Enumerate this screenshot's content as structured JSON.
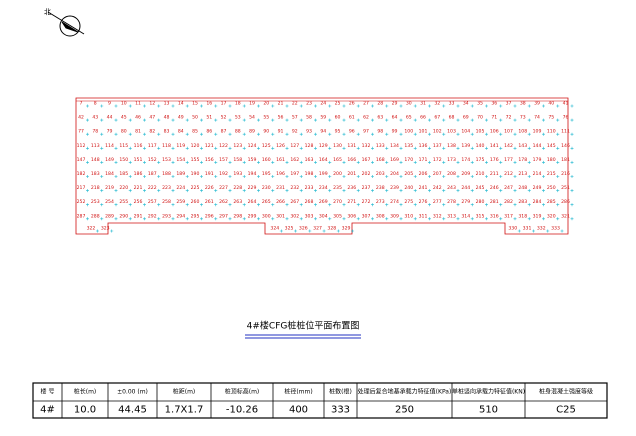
{
  "drawing_title": "4#楼CFG桩桩位平面布置图",
  "piles": {
    "rows": [
      [
        7,
        8,
        9,
        10,
        11,
        12,
        13,
        14,
        15,
        16,
        17,
        18,
        19,
        20,
        21,
        22,
        23,
        24,
        25,
        26,
        27,
        28,
        29,
        30,
        31,
        32,
        33,
        34,
        35,
        36,
        37,
        38,
        39,
        40,
        41
      ],
      [
        42,
        43,
        44,
        45,
        46,
        47,
        48,
        49,
        50,
        51,
        52,
        53,
        54,
        55,
        56,
        57,
        58,
        59,
        60,
        61,
        62,
        63,
        64,
        65,
        66,
        67,
        68,
        69,
        70,
        71,
        72,
        73,
        74,
        75,
        76
      ],
      [
        77,
        78,
        79,
        80,
        81,
        82,
        83,
        84,
        85,
        86,
        87,
        88,
        89,
        90,
        91,
        92,
        93,
        94,
        95,
        96,
        97,
        98,
        99,
        100,
        101,
        102,
        103,
        104,
        105,
        106,
        107,
        108,
        109,
        110,
        111
      ],
      [
        112,
        113,
        114,
        115,
        116,
        117,
        118,
        119,
        120,
        121,
        122,
        123,
        124,
        125,
        126,
        127,
        128,
        129,
        130,
        131,
        132,
        133,
        134,
        135,
        136,
        137,
        138,
        139,
        140,
        141,
        142,
        143,
        144,
        145,
        146
      ],
      [
        147,
        148,
        149,
        150,
        151,
        152,
        153,
        154,
        155,
        156,
        157,
        158,
        159,
        160,
        161,
        162,
        163,
        164,
        165,
        166,
        167,
        168,
        169,
        170,
        171,
        172,
        173,
        174,
        175,
        176,
        177,
        178,
        179,
        180,
        181
      ],
      [
        182,
        183,
        184,
        185,
        186,
        187,
        188,
        189,
        190,
        191,
        192,
        193,
        194,
        195,
        196,
        197,
        198,
        199,
        200,
        201,
        202,
        203,
        204,
        205,
        206,
        207,
        208,
        209,
        210,
        211,
        212,
        213,
        214,
        215,
        216
      ],
      [
        217,
        218,
        219,
        220,
        221,
        222,
        223,
        224,
        225,
        226,
        227,
        228,
        229,
        230,
        231,
        232,
        233,
        234,
        235,
        236,
        237,
        238,
        239,
        240,
        241,
        242,
        243,
        244,
        245,
        246,
        247,
        248,
        249,
        250,
        251
      ],
      [
        252,
        253,
        254,
        255,
        256,
        257,
        258,
        259,
        260,
        261,
        262,
        263,
        264,
        265,
        266,
        267,
        268,
        269,
        270,
        271,
        272,
        273,
        274,
        275,
        276,
        277,
        278,
        279,
        280,
        281,
        282,
        283,
        284,
        285,
        286
      ],
      [
        287,
        288,
        289,
        290,
        291,
        292,
        293,
        294,
        295,
        296,
        297,
        298,
        299,
        300,
        301,
        302,
        303,
        304,
        305,
        306,
        307,
        308,
        309,
        310,
        311,
        312,
        313,
        314,
        315,
        316,
        317,
        318,
        319,
        320,
        321
      ]
    ],
    "bottom_groups": [
      [
        322,
        323
      ],
      [
        324,
        325,
        326,
        327,
        328,
        329
      ],
      [
        330,
        331,
        332,
        333
      ]
    ]
  },
  "table": {
    "header": [
      "楼 号",
      "桩长(m)",
      "±0.00 (m)",
      "桩距(m)",
      "桩顶标高(m)",
      "桩径(mm)",
      "桩数(根)",
      "处理后复合地基承载力特征值(KPa)",
      "单桩竖向承载力特征值(KN)",
      "桩身混凝土强度等级"
    ],
    "rows": [
      [
        "4#",
        "10.0",
        "44.45",
        "1.7X1.7",
        "-10.26",
        "400",
        "333",
        "250",
        "510",
        "C25"
      ]
    ]
  }
}
